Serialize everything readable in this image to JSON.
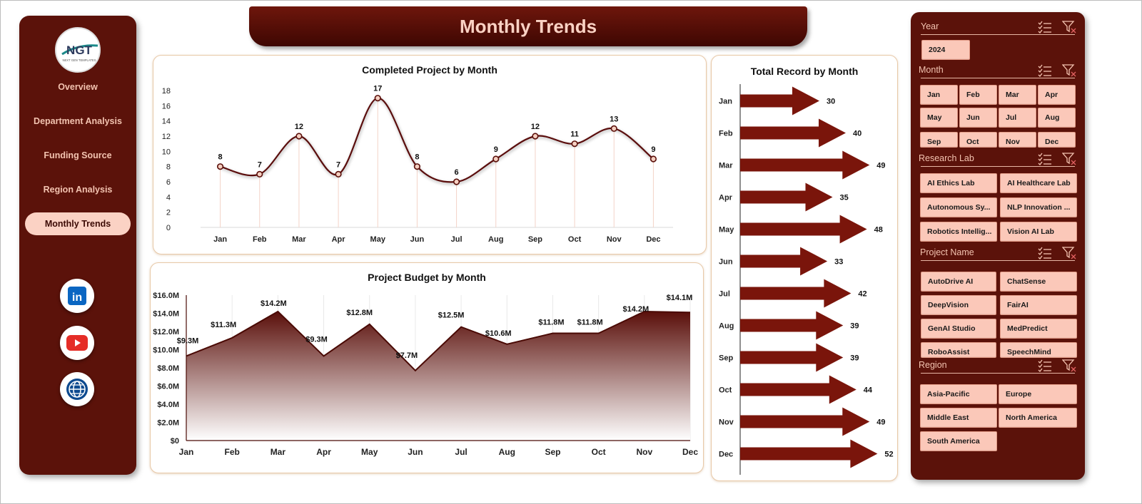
{
  "page": {
    "title": "Monthly Trends"
  },
  "logo": {
    "text": "NGT",
    "subtext": "NEXT GEN TEMPLATES"
  },
  "sidebar": {
    "items": [
      {
        "label": "Overview",
        "active": false
      },
      {
        "label": "Department Analysis",
        "active": false
      },
      {
        "label": "Funding Source",
        "active": false
      },
      {
        "label": "Region Analysis",
        "active": false
      },
      {
        "label": "Monthly Trends",
        "active": true
      }
    ],
    "social": [
      {
        "name": "linkedin-icon",
        "text": "in"
      },
      {
        "name": "youtube-icon",
        "text": "▶"
      },
      {
        "name": "globe-icon",
        "text": "🌐"
      }
    ]
  },
  "colors": {
    "brand_dark": "#5b120a",
    "accent_light": "#fbd2c4",
    "chart_line": "#5a0f0a",
    "arrow": "#7a150b"
  },
  "chart_data": [
    {
      "type": "line",
      "title": "Completed Project by Month",
      "categories": [
        "Jan",
        "Feb",
        "Mar",
        "Apr",
        "May",
        "Jun",
        "Jul",
        "Aug",
        "Sep",
        "Oct",
        "Nov",
        "Dec"
      ],
      "values": [
        8,
        7,
        12,
        7,
        17,
        8,
        6,
        9,
        12,
        11,
        13,
        9
      ],
      "data_labels": [
        "8",
        "7",
        "12",
        "7",
        "17",
        "8",
        "6",
        "9",
        "12",
        "11",
        "13",
        "9"
      ],
      "yticks": [
        "0",
        "2",
        "4",
        "6",
        "8",
        "10",
        "12",
        "14",
        "16",
        "18"
      ],
      "ylim": [
        0,
        18
      ],
      "smooth": true
    },
    {
      "type": "area",
      "title": "Project Budget by Month",
      "categories": [
        "Jan",
        "Feb",
        "Mar",
        "Apr",
        "May",
        "Jun",
        "Jul",
        "Aug",
        "Sep",
        "Oct",
        "Nov",
        "Dec"
      ],
      "values": [
        9.3,
        11.3,
        14.2,
        9.3,
        12.8,
        7.7,
        12.5,
        10.6,
        11.8,
        11.8,
        14.2,
        14.1
      ],
      "data_labels": [
        "$9.3M",
        "$11.3M",
        "$14.2M",
        "$9.3M",
        "$12.8M",
        "$7.7M",
        "$12.5M",
        "$10.6M",
        "$11.8M",
        "$11.8M",
        "$14.2M",
        "$14.1M"
      ],
      "yticks": [
        "$0",
        "$2.0M",
        "$4.0M",
        "$6.0M",
        "$8.0M",
        "$10.0M",
        "$12.0M",
        "$14.0M",
        "$16.0M"
      ],
      "ylim": [
        0,
        16
      ]
    },
    {
      "type": "bar",
      "orientation": "horizontal",
      "title": "Total Record by Month",
      "categories": [
        "Jan",
        "Feb",
        "Mar",
        "Apr",
        "May",
        "Jun",
        "Jul",
        "Aug",
        "Sep",
        "Oct",
        "Nov",
        "Dec"
      ],
      "values": [
        30,
        40,
        49,
        35,
        48,
        33,
        42,
        39,
        39,
        44,
        49,
        52
      ],
      "data_labels": [
        "30",
        "40",
        "49",
        "35",
        "48",
        "33",
        "42",
        "39",
        "39",
        "44",
        "49",
        "52"
      ],
      "bar_shape": "arrow"
    }
  ],
  "slicers": {
    "year": {
      "label": "Year",
      "options": [
        "2024"
      ]
    },
    "month": {
      "label": "Month",
      "options": [
        "Jan",
        "Feb",
        "Mar",
        "Apr",
        "May",
        "Jun",
        "Jul",
        "Aug",
        "Sep",
        "Oct",
        "Nov",
        "Dec"
      ]
    },
    "research_lab": {
      "label": "Research Lab",
      "options": [
        "AI Ethics Lab",
        "AI Healthcare Lab",
        "Autonomous Sy...",
        "NLP Innovation ...",
        "Robotics Intellig...",
        "Vision AI Lab"
      ]
    },
    "project_name": {
      "label": "Project Name",
      "options": [
        "AutoDrive AI",
        "ChatSense",
        "DeepVision",
        "FairAI",
        "GenAI Studio",
        "MedPredict",
        "RoboAssist",
        "SpeechMind"
      ]
    },
    "region": {
      "label": "Region",
      "options": [
        "Asia-Pacific",
        "Europe",
        "Middle East",
        "North America",
        "South America"
      ]
    }
  }
}
